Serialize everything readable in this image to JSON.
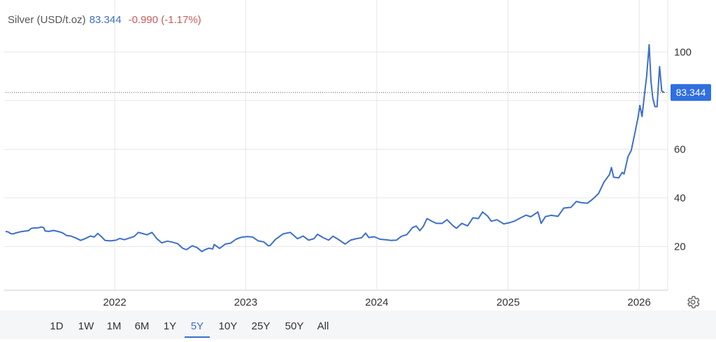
{
  "header": {
    "title": "Silver (USD/t.oz)",
    "last": "83.344",
    "change": "-0.990 (-1.17%)"
  },
  "colors": {
    "line": "#3d6fc9",
    "badge": "#2f6fe0",
    "change": "#cc5a5a",
    "grid": "#e6e6e6"
  },
  "range_buttons": [
    "1D",
    "1W",
    "1M",
    "6M",
    "1Y",
    "5Y",
    "10Y",
    "25Y",
    "50Y",
    "All"
  ],
  "active_range": "5Y",
  "icons": {
    "settings": "gear-icon"
  },
  "chart_data": {
    "type": "line",
    "title": "Silver (USD/t.oz)",
    "x_axis": "date",
    "x_ticks": [
      "2022",
      "2023",
      "2024",
      "2025",
      "2026"
    ],
    "y_ticks": [
      20,
      40,
      60,
      100
    ],
    "ylim": [
      2,
      107
    ],
    "xlim": [
      "2021-03-03",
      "2026-03-12"
    ],
    "last_value": 83.344,
    "last_label": "83.344",
    "grid": true,
    "series": [
      {
        "points": [
          [
            "2021-03-03",
            26.2
          ],
          [
            "2021-03-10",
            26.0
          ],
          [
            "2021-03-17",
            25.3
          ],
          [
            "2021-03-24",
            25.2
          ],
          [
            "2021-04-01",
            25.6
          ],
          [
            "2021-04-15",
            26.1
          ],
          [
            "2021-04-29",
            26.4
          ],
          [
            "2021-05-06",
            26.5
          ],
          [
            "2021-05-13",
            27.4
          ],
          [
            "2021-05-20",
            27.6
          ],
          [
            "2021-06-03",
            27.7
          ],
          [
            "2021-06-10",
            28.0
          ],
          [
            "2021-06-17",
            27.8
          ],
          [
            "2021-06-21",
            26.4
          ],
          [
            "2021-07-01",
            26.2
          ],
          [
            "2021-07-15",
            26.6
          ],
          [
            "2021-08-01",
            26.0
          ],
          [
            "2021-08-10",
            25.5
          ],
          [
            "2021-08-20",
            24.5
          ],
          [
            "2021-09-01",
            24.3
          ],
          [
            "2021-09-15",
            23.5
          ],
          [
            "2021-09-28",
            22.5
          ],
          [
            "2021-10-10",
            23.2
          ],
          [
            "2021-10-25",
            24.3
          ],
          [
            "2021-11-05",
            23.9
          ],
          [
            "2021-11-15",
            25.4
          ],
          [
            "2021-11-25",
            24.0
          ],
          [
            "2021-12-05",
            22.5
          ],
          [
            "2021-12-20",
            22.3
          ],
          [
            "2022-01-05",
            22.6
          ],
          [
            "2022-01-15",
            23.3
          ],
          [
            "2022-01-28",
            22.8
          ],
          [
            "2022-02-10",
            23.4
          ],
          [
            "2022-02-24",
            24.1
          ],
          [
            "2022-03-08",
            25.8
          ],
          [
            "2022-03-20",
            25.3
          ],
          [
            "2022-04-01",
            24.8
          ],
          [
            "2022-04-15",
            25.8
          ],
          [
            "2022-04-28",
            23.3
          ],
          [
            "2022-05-12",
            21.5
          ],
          [
            "2022-05-28",
            22.2
          ],
          [
            "2022-06-10",
            21.8
          ],
          [
            "2022-06-25",
            21.2
          ],
          [
            "2022-07-10",
            19.2
          ],
          [
            "2022-07-20",
            18.7
          ],
          [
            "2022-08-05",
            20.3
          ],
          [
            "2022-08-18",
            19.6
          ],
          [
            "2022-09-01",
            17.9
          ],
          [
            "2022-09-10",
            18.7
          ],
          [
            "2022-09-20",
            19.3
          ],
          [
            "2022-10-01",
            19.0
          ],
          [
            "2022-10-05",
            20.8
          ],
          [
            "2022-10-20",
            19.2
          ],
          [
            "2022-11-05",
            21.0
          ],
          [
            "2022-11-20",
            21.4
          ],
          [
            "2022-12-05",
            23.0
          ],
          [
            "2022-12-20",
            23.8
          ],
          [
            "2023-01-05",
            24.1
          ],
          [
            "2023-01-20",
            23.9
          ],
          [
            "2023-02-05",
            22.3
          ],
          [
            "2023-02-20",
            21.9
          ],
          [
            "2023-03-05",
            20.3
          ],
          [
            "2023-03-10",
            20.4
          ],
          [
            "2023-03-25",
            22.9
          ],
          [
            "2023-04-15",
            25.2
          ],
          [
            "2023-05-05",
            25.8
          ],
          [
            "2023-05-25",
            23.2
          ],
          [
            "2023-06-10",
            24.3
          ],
          [
            "2023-06-25",
            22.6
          ],
          [
            "2023-07-10",
            23.2
          ],
          [
            "2023-07-20",
            25.0
          ],
          [
            "2023-08-05",
            23.6
          ],
          [
            "2023-08-20",
            22.6
          ],
          [
            "2023-09-01",
            24.2
          ],
          [
            "2023-09-15",
            23.0
          ],
          [
            "2023-10-05",
            21.0
          ],
          [
            "2023-10-20",
            22.6
          ],
          [
            "2023-11-05",
            23.2
          ],
          [
            "2023-11-20",
            23.6
          ],
          [
            "2023-12-01",
            25.5
          ],
          [
            "2023-12-10",
            23.7
          ],
          [
            "2023-12-25",
            24.0
          ],
          [
            "2024-01-10",
            23.0
          ],
          [
            "2024-01-25",
            22.8
          ],
          [
            "2024-02-10",
            22.5
          ],
          [
            "2024-02-25",
            22.6
          ],
          [
            "2024-03-10",
            24.2
          ],
          [
            "2024-03-25",
            24.9
          ],
          [
            "2024-04-10",
            27.8
          ],
          [
            "2024-04-20",
            28.4
          ],
          [
            "2024-04-30",
            26.5
          ],
          [
            "2024-05-10",
            28.3
          ],
          [
            "2024-05-20",
            31.5
          ],
          [
            "2024-06-01",
            30.5
          ],
          [
            "2024-06-15",
            29.5
          ],
          [
            "2024-07-01",
            29.5
          ],
          [
            "2024-07-15",
            31.0
          ],
          [
            "2024-08-01",
            28.5
          ],
          [
            "2024-08-10",
            27.5
          ],
          [
            "2024-08-25",
            29.5
          ],
          [
            "2024-09-10",
            28.5
          ],
          [
            "2024-09-25",
            31.8
          ],
          [
            "2024-10-10",
            31.5
          ],
          [
            "2024-10-22",
            34.2
          ],
          [
            "2024-11-05",
            32.5
          ],
          [
            "2024-11-15",
            30.4
          ],
          [
            "2024-12-01",
            31.0
          ],
          [
            "2024-12-20",
            29.3
          ],
          [
            "2025-01-05",
            29.8
          ],
          [
            "2025-01-20",
            30.5
          ],
          [
            "2025-02-05",
            31.8
          ],
          [
            "2025-02-20",
            32.9
          ],
          [
            "2025-03-05",
            32.2
          ],
          [
            "2025-03-25",
            34.2
          ],
          [
            "2025-04-03",
            29.5
          ],
          [
            "2025-04-15",
            32.3
          ],
          [
            "2025-05-01",
            32.8
          ],
          [
            "2025-05-20",
            32.4
          ],
          [
            "2025-06-05",
            35.8
          ],
          [
            "2025-06-25",
            36.1
          ],
          [
            "2025-07-10",
            38.5
          ],
          [
            "2025-07-25",
            38.0
          ],
          [
            "2025-08-10",
            37.8
          ],
          [
            "2025-08-25",
            39.5
          ],
          [
            "2025-09-10",
            41.8
          ],
          [
            "2025-09-25",
            46.5
          ],
          [
            "2025-10-10",
            49.5
          ],
          [
            "2025-10-16",
            52.5
          ],
          [
            "2025-10-22",
            48.5
          ],
          [
            "2025-11-05",
            48.2
          ],
          [
            "2025-11-15",
            50.5
          ],
          [
            "2025-11-20",
            49.8
          ],
          [
            "2025-12-01",
            57.0
          ],
          [
            "2025-12-10",
            59.5
          ],
          [
            "2025-12-20",
            66.5
          ],
          [
            "2025-12-29",
            73.0
          ],
          [
            "2026-01-03",
            78.0
          ],
          [
            "2026-01-09",
            73.5
          ],
          [
            "2026-01-15",
            81.5
          ],
          [
            "2026-01-22",
            90.0
          ],
          [
            "2026-01-29",
            103.0
          ],
          [
            "2026-02-03",
            88.0
          ],
          [
            "2026-02-08",
            81.0
          ],
          [
            "2026-02-14",
            77.5
          ],
          [
            "2026-02-20",
            77.5
          ],
          [
            "2026-02-27",
            94.0
          ],
          [
            "2026-03-05",
            84.0
          ],
          [
            "2026-03-12",
            83.3
          ]
        ]
      }
    ]
  }
}
